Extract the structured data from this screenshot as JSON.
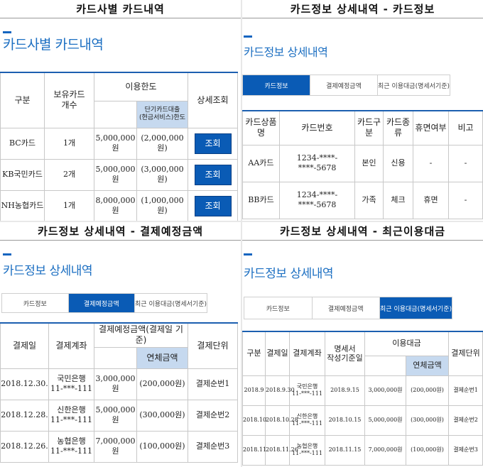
{
  "q1": {
    "heading": "카드사별 카드내역",
    "title": "카드사별 카드내역",
    "headers": {
      "type": "구분",
      "owned": "보유카드\n개수",
      "limit": "이용한도",
      "limit_sub": "단기카드대출\n(현금서비스)한도",
      "detail": "상세조회"
    },
    "rows": [
      {
        "type": "BC카드",
        "owned": "1개",
        "limit": "5,000,000원",
        "short": "(2,000,000원)",
        "btn": "조회"
      },
      {
        "type": "KB국민카드",
        "owned": "2개",
        "limit": "5,000,000원",
        "short": "(3,000,000원)",
        "btn": "조회"
      },
      {
        "type": "NH농협카드",
        "owned": "1개",
        "limit": "8,000,000원",
        "short": "(1,000,000원)",
        "btn": "조회"
      }
    ]
  },
  "q2": {
    "heading": "카드정보 상세내역 - 카드정보",
    "title": "카드정보 상세내역",
    "tabs": [
      "카드정보",
      "결제예정금액",
      "최근 이용대금(명세서기준)"
    ],
    "active_tab": 0,
    "headers": [
      "카드상품명",
      "카드번호",
      "카드구분",
      "카드종류",
      "휴면여부",
      "비고"
    ],
    "rows": [
      [
        "AA카드",
        "1234-****-****-5678",
        "본인",
        "신용",
        "-",
        "-"
      ],
      [
        "BB카드",
        "1234-****-****-5678",
        "가족",
        "체크",
        "휴면",
        "-"
      ]
    ]
  },
  "q3": {
    "heading": "카드정보 상세내역 - 결제예정금액",
    "title": "카드정보 상세내역",
    "tabs": [
      "카드정보",
      "결제예정금액",
      "최근 이용대금(명세서기준)"
    ],
    "active_tab": 1,
    "headers": {
      "date": "결제일",
      "account": "결제계좌",
      "amount": "결제예정금액(결제일 기준)",
      "overdue": "연체금액",
      "unit": "결제단위"
    },
    "rows": [
      {
        "date": "2018.12.30.",
        "bank": "국민은행",
        "acct": "11-***-111",
        "amount": "3,000,000원",
        "overdue": "(200,000원)",
        "unit": "결제순번1"
      },
      {
        "date": "2018.12.28.",
        "bank": "신한은행",
        "acct": "11-***-111",
        "amount": "5,000,000원",
        "overdue": "(300,000원)",
        "unit": "결제순번2"
      },
      {
        "date": "2018.12.26.",
        "bank": "농협은행",
        "acct": "11-***-111",
        "amount": "7,000,000원",
        "overdue": "(100,000원)",
        "unit": "결제순번3"
      }
    ]
  },
  "q4": {
    "heading": "카드정보 상세내역 - 최근이용대금",
    "title": "카드정보 상세내역",
    "tabs": [
      "카드정보",
      "결제예정금액",
      "최근 이용대금(명세서기준)"
    ],
    "active_tab": 2,
    "headers": {
      "type": "구분",
      "date": "결제일",
      "account": "결제계좌",
      "stmt": "명세서\n작성기준일",
      "usage": "이용대금",
      "overdue": "연체금액",
      "unit": "결제단위"
    },
    "rows": [
      {
        "type": "2018.9",
        "date": "2018.9.30",
        "bank": "국민은행",
        "acct": "11-***-111",
        "stmt": "2018.9.15",
        "amount": "3,000,000원",
        "overdue": "(200,000원)",
        "unit": "결제순번1"
      },
      {
        "type": "2018.10",
        "date": "2018.10.28",
        "bank": "신한은행",
        "acct": "11-***-111",
        "stmt": "2018.10.15",
        "amount": "5,000,000원",
        "overdue": "(300,000원)",
        "unit": "결제순번2"
      },
      {
        "type": "2018.11",
        "date": "2018.11.26",
        "bank": "농협은행",
        "acct": "11-***-111",
        "stmt": "2018.11.15",
        "amount": "7,000,000원",
        "overdue": "(100,000원)",
        "unit": "결제순번3"
      }
    ]
  }
}
